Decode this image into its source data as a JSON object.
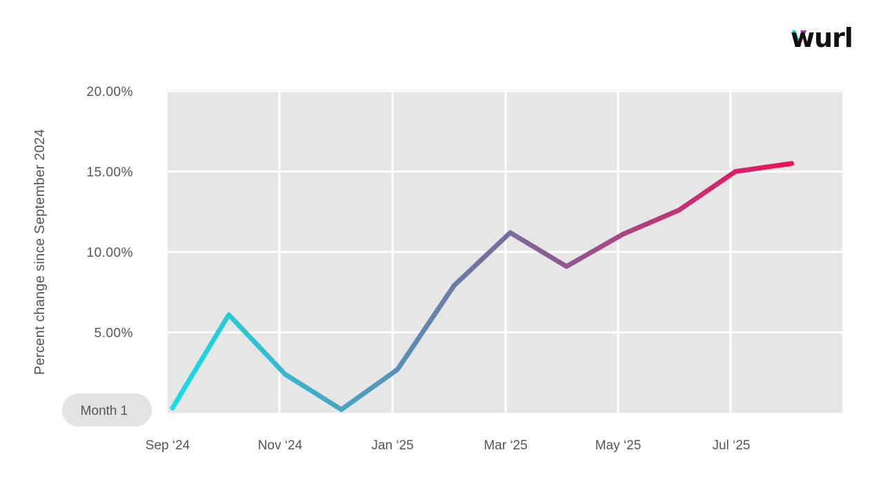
{
  "logo": {
    "text": "wurl",
    "mark_colors": [
      "#1ec8d8",
      "#e6125a",
      "#7b3fb0"
    ]
  },
  "chart_data": {
    "type": "line",
    "ylabel": "Percent change since September 2024",
    "xlabel": "",
    "title": "",
    "x_ticks": [
      "Sep ‘24",
      "Nov ‘24",
      "Jan ‘25",
      "Mar ‘25",
      "May ‘25",
      "Jul ‘25"
    ],
    "y_ticks": [
      "20.00%",
      "15.00%",
      "10.00%",
      "5.00%"
    ],
    "baseline_label": "Month 1",
    "ylim": [
      0,
      20
    ],
    "x": [
      "Sep 2024",
      "Oct 2024",
      "Nov 2024",
      "Dec 2024",
      "Jan 2025",
      "Feb 2025",
      "Mar 2025",
      "Apr 2025",
      "May 2025",
      "Jun 2025",
      "Jul 2025",
      "Aug 2025"
    ],
    "values": [
      0.3,
      6.1,
      2.4,
      0.2,
      2.7,
      7.9,
      11.2,
      9.1,
      11.1,
      12.6,
      15.0,
      15.5
    ],
    "gradient": [
      "#18dde6",
      "#7a6a9c",
      "#f0105a"
    ],
    "grid": true,
    "background": "#e6e6e6"
  }
}
